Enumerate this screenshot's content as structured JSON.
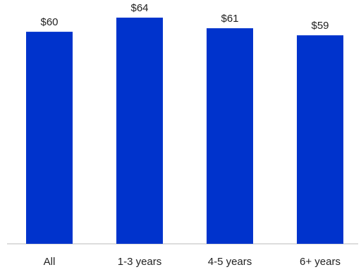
{
  "chart_data": {
    "type": "bar",
    "categories": [
      "All",
      "1-3 years",
      "4-5 years",
      "6+ years"
    ],
    "values": [
      60,
      64,
      61,
      59
    ],
    "data_labels": [
      "$60",
      "$64",
      "$61",
      "$59"
    ],
    "title": "",
    "xlabel": "",
    "ylabel": "",
    "ylim": [
      0,
      66
    ],
    "grid": false,
    "legend": "none",
    "colors": {
      "bar": "#0033CC",
      "axis": "#BBBBBB",
      "text": "#222222"
    }
  }
}
